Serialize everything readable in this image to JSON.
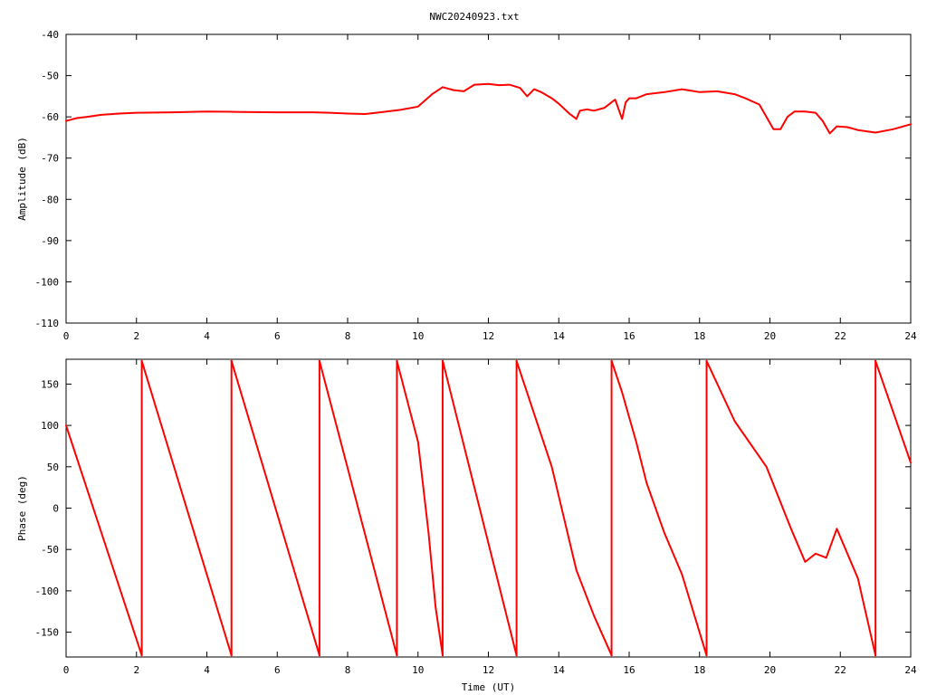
{
  "title": "NWC20240923.txt",
  "colors": {
    "trace": "#ff0000",
    "axes": "#000000",
    "background": "#ffffff"
  },
  "chart_data": [
    {
      "type": "line",
      "ylabel": "Amplitude (dB)",
      "xlabel": "",
      "xlim": [
        0,
        24
      ],
      "ylim": [
        -110,
        -40
      ],
      "xticks": [
        0,
        2,
        4,
        6,
        8,
        10,
        12,
        14,
        16,
        18,
        20,
        22,
        24
      ],
      "xtick_labels": [
        "0",
        "2",
        "4",
        "6",
        "8",
        "10",
        "12",
        "14",
        "16",
        "18",
        "20",
        "22",
        "24"
      ],
      "yticks": [
        -110,
        -100,
        -90,
        -80,
        -70,
        -60,
        -50,
        -40
      ],
      "ytick_labels": [
        "-110",
        "-100",
        "-90",
        "-80",
        "-70",
        "-60",
        "-50",
        "-40"
      ],
      "grid": false,
      "series": [
        {
          "x": [
            0,
            0.3,
            0.6,
            1,
            1.5,
            2,
            3,
            4,
            5,
            6,
            7,
            7.5,
            8,
            8.5,
            9,
            9.5,
            10,
            10.4,
            10.7,
            11,
            11.3,
            11.6,
            12,
            12.3,
            12.6,
            12.9,
            13.1,
            13.3,
            13.5,
            13.8,
            14,
            14.3,
            14.5,
            14.6,
            14.8,
            15,
            15.3,
            15.6,
            15.8,
            15.9,
            16,
            16.2,
            16.5,
            17,
            17.5,
            18,
            18.5,
            19,
            19.3,
            19.7,
            19.9,
            20.1,
            20.3,
            20.5,
            20.7,
            21,
            21.3,
            21.5,
            21.7,
            21.9,
            22.2,
            22.5,
            23,
            23.5,
            24
          ],
          "y": [
            -61,
            -60.3,
            -60,
            -59.5,
            -59.2,
            -59,
            -58.9,
            -58.7,
            -58.8,
            -58.9,
            -58.9,
            -59,
            -59.2,
            -59.3,
            -58.8,
            -58.3,
            -57.5,
            -54.5,
            -52.8,
            -53.5,
            -53.8,
            -52.2,
            -52,
            -52.3,
            -52.2,
            -53,
            -55,
            -53.3,
            -54,
            -55.5,
            -56.8,
            -59.2,
            -60.5,
            -58.5,
            -58.2,
            -58.5,
            -57.8,
            -55.8,
            -60.5,
            -56.5,
            -55.5,
            -55.5,
            -54.5,
            -54,
            -53.3,
            -54,
            -53.8,
            -54.5,
            -55.5,
            -57,
            -60,
            -63,
            -63,
            -60,
            -58.7,
            -58.7,
            -59,
            -61,
            -64,
            -62.3,
            -62.5,
            -63.2,
            -63.8,
            -63,
            -61.8
          ]
        }
      ]
    },
    {
      "type": "line",
      "ylabel": "Phase (deg)",
      "xlabel": "Time (UT)",
      "xlim": [
        0,
        24
      ],
      "ylim": [
        -180,
        180
      ],
      "xticks": [
        0,
        2,
        4,
        6,
        8,
        10,
        12,
        14,
        16,
        18,
        20,
        22,
        24
      ],
      "xtick_labels": [
        "0",
        "2",
        "4",
        "6",
        "8",
        "10",
        "12",
        "14",
        "16",
        "18",
        "20",
        "22",
        "24"
      ],
      "yticks": [
        -150,
        -100,
        -50,
        0,
        50,
        100,
        150
      ],
      "ytick_labels": [
        "-150",
        "-100",
        "-50",
        "0",
        "50",
        "100",
        "150"
      ],
      "grid": false,
      "series": [
        {
          "x": [
            0,
            2.15
          ],
          "y": [
            100,
            -178
          ]
        },
        {
          "x": [
            2.15,
            4.7
          ],
          "y": [
            178,
            -178
          ]
        },
        {
          "x": [
            4.7,
            7.2
          ],
          "y": [
            178,
            -178
          ]
        },
        {
          "x": [
            7.2,
            9.4
          ],
          "y": [
            178,
            -178
          ]
        },
        {
          "x": [
            9.4,
            10,
            10.3,
            10.5,
            10.7
          ],
          "y": [
            178,
            80,
            -30,
            -120,
            -178
          ]
        },
        {
          "x": [
            10.7,
            12.8
          ],
          "y": [
            178,
            -178
          ]
        },
        {
          "x": [
            12.8,
            13.8,
            14.5,
            15,
            15.5
          ],
          "y": [
            178,
            50,
            -75,
            -130,
            -178
          ]
        },
        {
          "x": [
            15.5,
            15.8,
            16.2,
            16.5,
            17,
            17.5,
            18.2
          ],
          "y": [
            178,
            140,
            80,
            30,
            -30,
            -80,
            -178
          ]
        },
        {
          "x": [
            18.2,
            19,
            19.9,
            20.6,
            21,
            21.3,
            21.6,
            21.9,
            22.5,
            23
          ],
          "y": [
            178,
            105,
            50,
            -25,
            -65,
            -55,
            -60,
            -25,
            -85,
            -178
          ]
        },
        {
          "x": [
            23,
            24
          ],
          "y": [
            178,
            55
          ]
        }
      ]
    }
  ]
}
